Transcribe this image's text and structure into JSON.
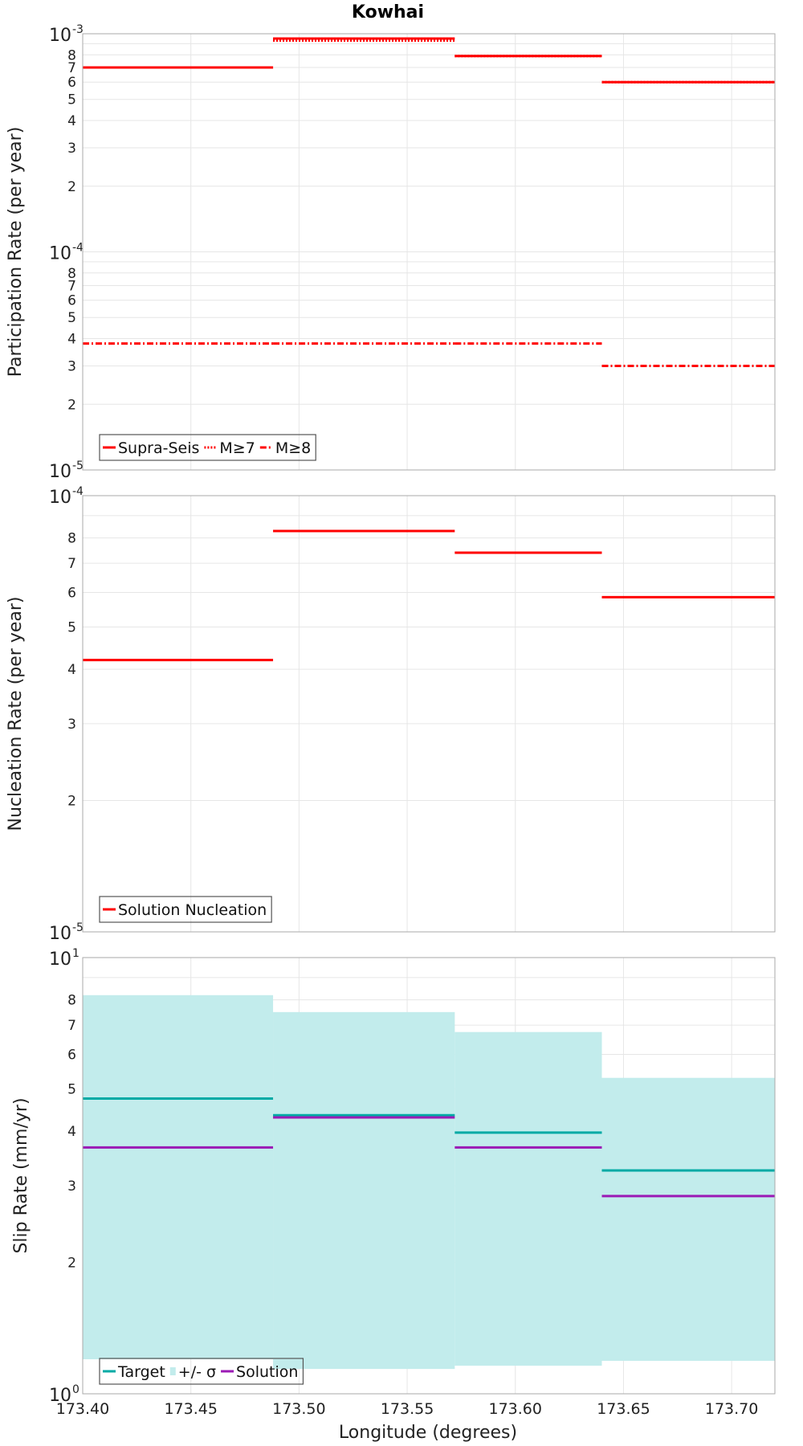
{
  "title": "Kowhai",
  "xlabel": "Longitude (degrees)",
  "chart_data": [
    {
      "type": "line",
      "id": "participation",
      "title": "Kowhai",
      "xlabel": "Longitude (degrees)",
      "ylabel": "Participation Rate (per year)",
      "yscale": "log",
      "xlim": [
        173.4,
        173.72
      ],
      "ylim": [
        1e-05,
        0.001
      ],
      "x_ticks": [
        "173.40",
        "173.45",
        "173.50",
        "173.55",
        "173.60",
        "173.65",
        "173.70"
      ],
      "grid": true,
      "legend_position": "bottom-left",
      "series": [
        {
          "name": "Supra-Seis",
          "color": "#ff0000",
          "dash": "solid",
          "segments": [
            [
              173.4,
              173.488,
              0.0007
            ],
            [
              173.488,
              173.572,
              0.00095
            ],
            [
              173.572,
              173.64,
              0.00079
            ],
            [
              173.64,
              173.72,
              0.0006
            ]
          ]
        },
        {
          "name": "M≥7",
          "color": "#ff0000",
          "dash": "dotted",
          "segments": [
            [
              173.4,
              173.488,
              0.0007
            ],
            [
              173.488,
              173.572,
              0.00093
            ],
            [
              173.572,
              173.64,
              0.00079
            ],
            [
              173.64,
              173.72,
              0.0006
            ]
          ]
        },
        {
          "name": "M≥8",
          "color": "#ff0000",
          "dash": "dashdot",
          "segments": [
            [
              173.4,
              173.488,
              3.8e-05
            ],
            [
              173.488,
              173.572,
              3.8e-05
            ],
            [
              173.572,
              173.64,
              3.8e-05
            ],
            [
              173.64,
              173.72,
              3e-05
            ]
          ]
        }
      ]
    },
    {
      "type": "line",
      "id": "nucleation",
      "ylabel": "Nucleation Rate (per year)",
      "yscale": "log",
      "xlim": [
        173.4,
        173.72
      ],
      "ylim": [
        1e-05,
        0.0001
      ],
      "grid": true,
      "legend_position": "bottom-left",
      "series": [
        {
          "name": "Solution Nucleation",
          "color": "#ff0000",
          "dash": "solid",
          "segments": [
            [
              173.4,
              173.488,
              4.2e-05
            ],
            [
              173.488,
              173.572,
              8.3e-05
            ],
            [
              173.572,
              173.64,
              7.4e-05
            ],
            [
              173.64,
              173.72,
              5.85e-05
            ]
          ]
        }
      ]
    },
    {
      "type": "line",
      "id": "slip",
      "ylabel": "Slip Rate (mm/yr)",
      "yscale": "log",
      "xlim": [
        173.4,
        173.72
      ],
      "ylim": [
        1,
        10
      ],
      "grid": true,
      "legend_position": "bottom-left",
      "bands": [
        {
          "name": "+/- σ",
          "color": "#c2ecec",
          "segments": [
            [
              173.4,
              173.488,
              1.2,
              8.2
            ],
            [
              173.488,
              173.572,
              1.14,
              7.5
            ],
            [
              173.572,
              173.64,
              1.16,
              6.75
            ],
            [
              173.64,
              173.72,
              1.19,
              5.3
            ]
          ]
        }
      ],
      "series": [
        {
          "name": "Target",
          "color": "#00aaa5",
          "dash": "solid",
          "segments": [
            [
              173.4,
              173.488,
              4.75
            ],
            [
              173.488,
              173.572,
              4.35
            ],
            [
              173.572,
              173.64,
              3.97
            ],
            [
              173.64,
              173.72,
              3.25
            ]
          ]
        },
        {
          "name": "Solution",
          "color": "#9b1ab5",
          "dash": "solid",
          "segments": [
            [
              173.4,
              173.488,
              3.67
            ],
            [
              173.488,
              173.572,
              4.3
            ],
            [
              173.572,
              173.64,
              3.67
            ],
            [
              173.64,
              173.72,
              2.84
            ]
          ]
        }
      ],
      "legend_order": [
        "Target",
        "+/- σ",
        "Solution"
      ]
    }
  ]
}
